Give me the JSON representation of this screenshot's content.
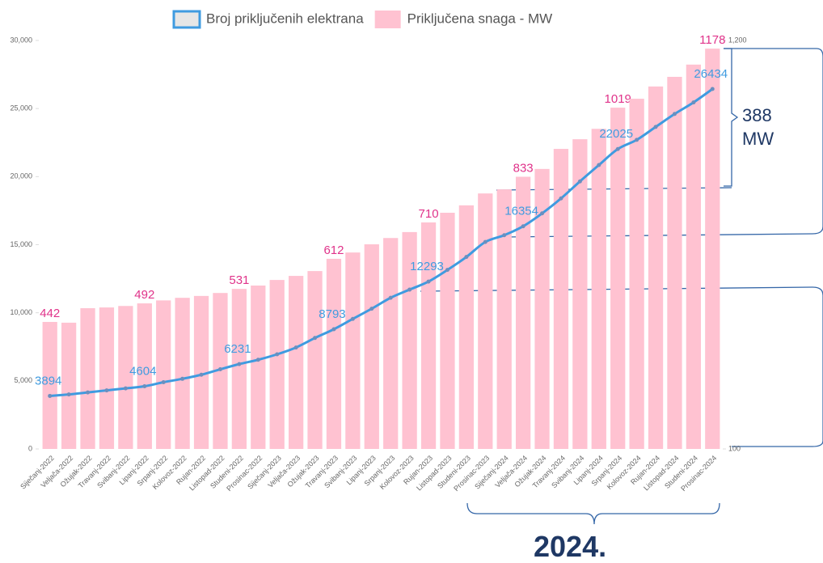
{
  "chart_data": {
    "type": "bar_line",
    "categories": [
      "Siječanj-2022",
      "Veljača-2022",
      "Ožujak-2022",
      "Travanj-2022",
      "Svibanj-2022",
      "Lipanj-2022",
      "Srpanj-2022",
      "Kolovoz-2022",
      "Rujan-2022",
      "Listopad-2022",
      "Studeni-2022",
      "Prosinac-2022",
      "Siječanj-2023",
      "Veljača-2023",
      "Ožujak-2023",
      "Travanj-2023",
      "Svibanj-2023",
      "Lipanj-2023",
      "Srpanj-2023",
      "Kolovoz-2023",
      "Rujan-2023",
      "Listopad-2023",
      "Studeni-2023",
      "Prosinac-2023",
      "Siječanj-2024",
      "Veljača-2024",
      "Ožujak-2024",
      "Travanj-2024",
      "Svibanj-2024",
      "Lipanj-2024",
      "Srpanj-2024",
      "Kolovoz-2024",
      "Rujan-2024",
      "Listopad-2024",
      "Studeni-2024",
      "Prosinac-2024"
    ],
    "series": [
      {
        "name": "Broj priključenih elektrana",
        "type": "line",
        "color": "#3f9be0",
        "axis": "y",
        "values": [
          3894,
          4000,
          4150,
          4300,
          4450,
          4604,
          4900,
          5150,
          5450,
          5850,
          6231,
          6550,
          6950,
          7450,
          8150,
          8793,
          9550,
          10300,
          11100,
          11700,
          12293,
          13150,
          14100,
          15200,
          15700,
          16354,
          17300,
          18400,
          19650,
          20850,
          22025,
          22700,
          23650,
          24600,
          25450,
          26434
        ]
      },
      {
        "name": "Priključena snaga - MW",
        "type": "bar",
        "color": "#ffc2d1",
        "label_color": "#e0338a",
        "axis": "y2",
        "values": [
          442,
          440,
          479,
          481,
          485,
          492,
          500,
          507,
          512,
          520,
          531,
          540,
          555,
          566,
          579,
          612,
          629,
          651,
          668,
          684,
          710,
          736,
          756,
          788,
          799,
          833,
          854,
          908,
          934,
          962,
          1019,
          1043,
          1076,
          1102,
          1135,
          1178
        ]
      }
    ],
    "label_every": 5,
    "ylim": [
      0,
      30000
    ],
    "yticks": [
      0,
      {
        "value": 5000,
        "label": "5,000"
      },
      {
        "value": 10000,
        "label": "10,000"
      },
      {
        "value": 15000,
        "label": "15,000"
      },
      {
        "value": 20000,
        "label": "20,000"
      },
      {
        "value": 25000,
        "label": "25,000"
      },
      {
        "value": 30000,
        "label": "30,000"
      }
    ],
    "y2lim": [
      100,
      1200
    ],
    "y2ticks": [
      100,
      {
        "value": 1200,
        "label": "1,200"
      }
    ],
    "annotations": [
      "388 MW",
      "2024."
    ]
  }
}
